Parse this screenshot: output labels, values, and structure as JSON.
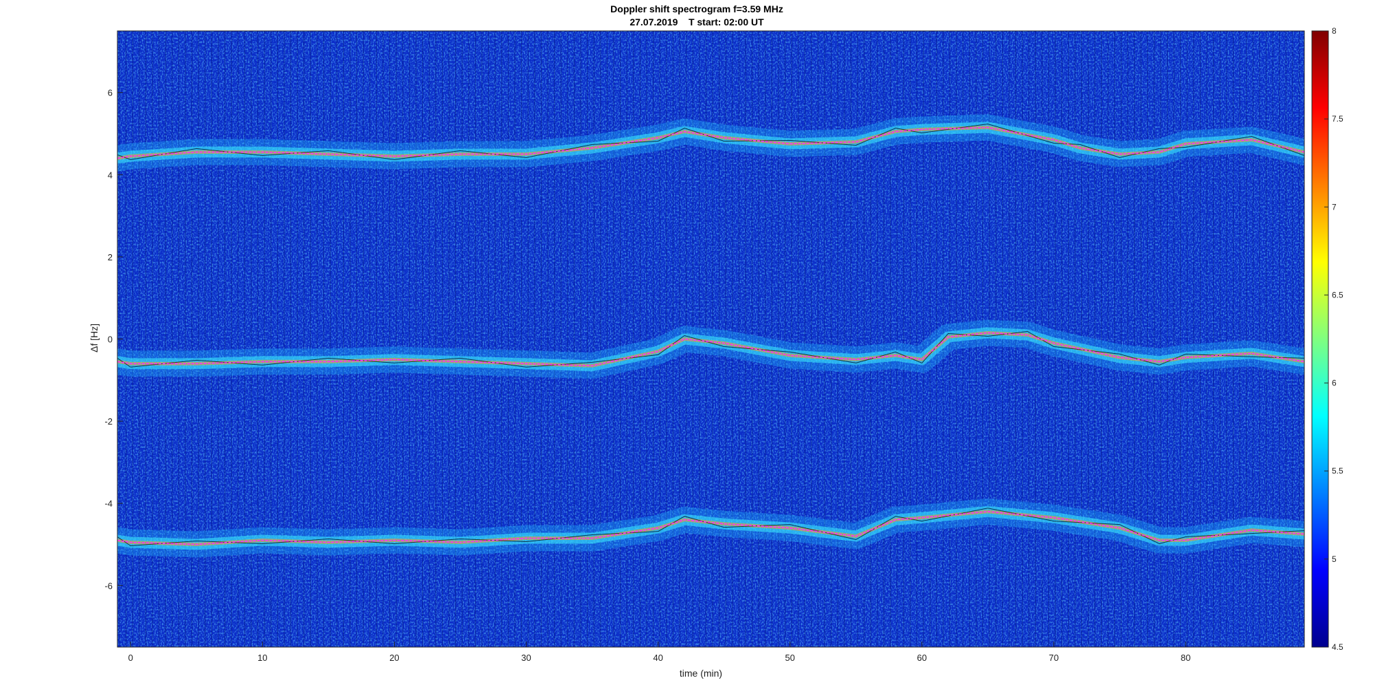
{
  "chart_data": {
    "type": "heatmap",
    "title": "Doppler shift spectrogram f=3.59 MHz",
    "subtitle": "27.07.2019    T start: 02:00 UT",
    "xlabel": "time (min)",
    "ylabel": "Δf [Hz]",
    "xlim": [
      -1,
      89
    ],
    "ylim": [
      -7.5,
      7.5
    ],
    "xticks": [
      0,
      10,
      20,
      30,
      40,
      50,
      60,
      70,
      80
    ],
    "yticks": [
      6,
      4,
      2,
      0,
      -2,
      -4,
      -6
    ],
    "colormap": "jet",
    "clim": [
      4.5,
      8
    ],
    "colorbar_ticks": [
      8,
      7.5,
      7,
      6.5,
      6,
      5.5,
      5,
      4.5
    ],
    "colors": {
      "fit_line": "#ff2bff",
      "raw_trace": "#000000",
      "background": "#0b2cc8"
    },
    "series": [
      {
        "x": [
          -1,
          0,
          5,
          10,
          15,
          20,
          25,
          30,
          35,
          40,
          42,
          45,
          50,
          55,
          58,
          60,
          65,
          70,
          72,
          75,
          78,
          80,
          85,
          89
        ],
        "y": [
          4.4,
          4.45,
          4.55,
          4.55,
          4.5,
          4.45,
          4.5,
          4.5,
          4.65,
          4.9,
          5.05,
          4.9,
          4.75,
          4.8,
          5.05,
          5.1,
          5.15,
          4.85,
          4.65,
          4.5,
          4.55,
          4.75,
          4.85,
          4.55
        ]
      },
      {
        "x": [
          -1,
          0,
          5,
          10,
          15,
          20,
          25,
          30,
          35,
          40,
          42,
          45,
          50,
          55,
          58,
          60,
          62,
          65,
          68,
          70,
          75,
          78,
          80,
          85,
          89
        ],
        "y": [
          -0.55,
          -0.6,
          -0.6,
          -0.55,
          -0.55,
          -0.5,
          -0.55,
          -0.6,
          -0.65,
          -0.3,
          0.0,
          -0.1,
          -0.4,
          -0.5,
          -0.4,
          -0.5,
          0.05,
          0.15,
          0.1,
          -0.1,
          -0.45,
          -0.55,
          -0.45,
          -0.35,
          -0.55
        ]
      },
      {
        "x": [
          -1,
          0,
          5,
          10,
          15,
          20,
          25,
          30,
          35,
          40,
          42,
          45,
          50,
          55,
          58,
          60,
          65,
          70,
          75,
          78,
          80,
          85,
          89
        ],
        "y": [
          -4.9,
          -4.95,
          -5.0,
          -4.9,
          -4.95,
          -4.9,
          -4.95,
          -4.85,
          -4.85,
          -4.6,
          -4.4,
          -4.5,
          -4.6,
          -4.8,
          -4.4,
          -4.35,
          -4.2,
          -4.35,
          -4.6,
          -4.9,
          -4.9,
          -4.65,
          -4.75
        ]
      }
    ]
  }
}
